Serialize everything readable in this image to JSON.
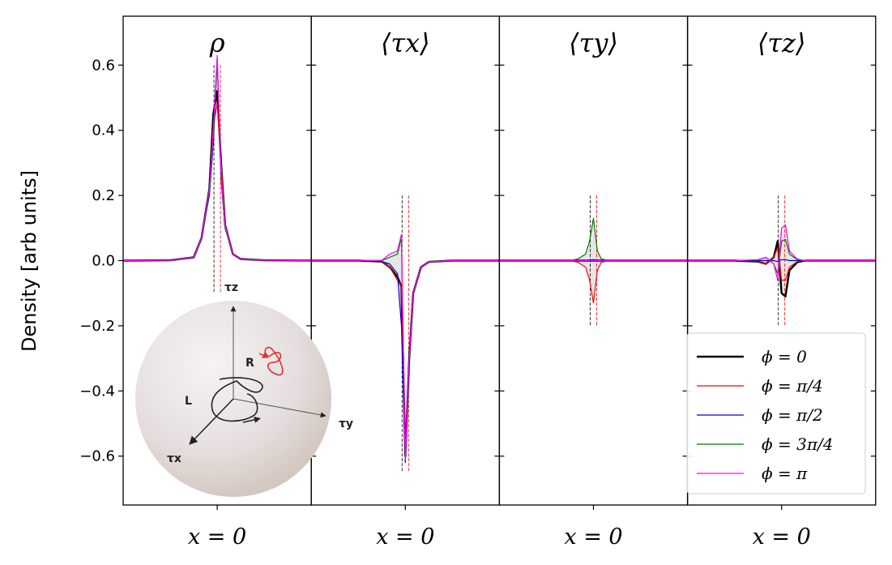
{
  "chart_data": {
    "type": "line",
    "ylabel": "Density [arb units]",
    "ylim": [
      -0.75,
      0.75
    ],
    "yticks": [
      -0.6,
      -0.4,
      -0.2,
      0.0,
      0.2,
      0.4,
      0.6
    ],
    "ytick_labels": [
      "−0.6",
      "−0.4",
      "−0.2",
      "0.0",
      "0.2",
      "0.4",
      "0.6"
    ],
    "xlim": [
      -1.2,
      1.2
    ],
    "x": [
      -1.2,
      -0.6,
      -0.3,
      -0.2,
      -0.1,
      -0.05,
      0.0,
      0.05,
      0.1,
      0.2,
      0.3,
      0.6,
      1.2
    ],
    "panels": [
      {
        "title": "ρ",
        "xtick_label": "x = 0",
        "series": [
          {
            "name": "ϕ = 0",
            "color": "#000000",
            "width": 2.4,
            "values": [
              0,
              0.001,
              0.01,
              0.07,
              0.22,
              0.45,
              0.52,
              0.3,
              0.11,
              0.02,
              0.005,
              0.001,
              0
            ]
          },
          {
            "name": "ϕ = π/4",
            "color": "#ff0000",
            "width": 1.2,
            "values": [
              0,
              0.001,
              0.01,
              0.07,
              0.21,
              0.42,
              0.48,
              0.3,
              0.11,
              0.02,
              0.005,
              0.001,
              0
            ]
          },
          {
            "name": "ϕ = π/2",
            "color": "#0000cc",
            "width": 1.2,
            "values": [
              0,
              0.001,
              0.01,
              0.07,
              0.2,
              0.36,
              0.62,
              0.25,
              0.1,
              0.02,
              0.005,
              0.001,
              0
            ]
          },
          {
            "name": "ϕ = 3π/4",
            "color": "#007700",
            "width": 1.2,
            "values": [
              0,
              0.001,
              0.01,
              0.07,
              0.21,
              0.38,
              0.62,
              0.26,
              0.1,
              0.02,
              0.005,
              0.001,
              0
            ]
          },
          {
            "name": "ϕ = π",
            "color": "#ff00ff",
            "width": 1.2,
            "values": [
              0,
              0.001,
              0.01,
              0.07,
              0.22,
              0.4,
              0.63,
              0.27,
              0.11,
              0.02,
              0.005,
              0.001,
              0
            ]
          }
        ]
      },
      {
        "title": "⟨τx⟩",
        "xtick_label": "x = 0",
        "series": [
          {
            "name": "ϕ = 0",
            "color": "#000000",
            "width": 2.4,
            "values": [
              0,
              0,
              -0.003,
              -0.02,
              -0.05,
              -0.08,
              -0.6,
              -0.3,
              -0.1,
              -0.02,
              -0.004,
              0,
              0
            ]
          },
          {
            "name": "ϕ = π/4",
            "color": "#ff0000",
            "width": 1.2,
            "values": [
              0,
              0,
              -0.003,
              -0.02,
              -0.06,
              -0.08,
              -0.58,
              -0.3,
              -0.1,
              -0.02,
              -0.004,
              0,
              0
            ]
          },
          {
            "name": "ϕ = π/2",
            "color": "#0000cc",
            "width": 1.2,
            "values": [
              0,
              0,
              -0.003,
              -0.01,
              -0.04,
              -0.2,
              -0.62,
              -0.3,
              -0.1,
              -0.02,
              -0.004,
              0,
              0
            ]
          },
          {
            "name": "ϕ = 3π/4",
            "color": "#007700",
            "width": 1.2,
            "values": [
              0,
              0,
              0,
              0.01,
              0.02,
              0.07,
              -0.61,
              -0.3,
              -0.1,
              -0.02,
              -0.004,
              0,
              0
            ]
          },
          {
            "name": "ϕ = π",
            "color": "#ff00ff",
            "width": 1.2,
            "values": [
              0,
              0,
              0.001,
              0.02,
              0.03,
              0.08,
              -0.61,
              -0.3,
              -0.1,
              -0.02,
              -0.004,
              0,
              0
            ]
          }
        ]
      },
      {
        "title": "⟨τy⟩",
        "xtick_label": "x = 0",
        "series": [
          {
            "name": "ϕ = 0",
            "color": "#000000",
            "width": 2.4,
            "values": [
              0,
              0,
              0,
              0,
              0,
              0,
              0,
              0,
              0,
              0,
              0,
              0,
              0
            ]
          },
          {
            "name": "ϕ = π/4",
            "color": "#ff0000",
            "width": 1.2,
            "values": [
              0,
              0,
              0,
              -0.005,
              -0.02,
              -0.06,
              -0.13,
              -0.03,
              -0.005,
              0,
              0,
              0,
              0
            ]
          },
          {
            "name": "ϕ = π/2",
            "color": "#0000cc",
            "width": 1.2,
            "values": [
              0,
              0,
              0,
              0,
              0,
              0.002,
              0.003,
              0.002,
              0,
              0,
              0,
              0,
              0
            ]
          },
          {
            "name": "ϕ = 3π/4",
            "color": "#007700",
            "width": 1.2,
            "values": [
              0,
              0,
              0,
              0.005,
              0.02,
              0.06,
              0.13,
              0.03,
              0.005,
              0,
              0,
              0,
              0
            ]
          },
          {
            "name": "ϕ = π",
            "color": "#ff00ff",
            "width": 1.2,
            "values": [
              0,
              0,
              0,
              0,
              0,
              0,
              0,
              0,
              0,
              0,
              0,
              0,
              0
            ]
          }
        ]
      },
      {
        "title": "⟨τz⟩",
        "xtick_label": "x = 0",
        "series": [
          {
            "name": "ϕ = 0",
            "color": "#000000",
            "width": 2.4,
            "values": [
              0,
              0,
              -0.003,
              -0.01,
              0.01,
              0.06,
              -0.1,
              -0.11,
              -0.03,
              -0.005,
              0,
              0,
              0
            ]
          },
          {
            "name": "ϕ = π/4",
            "color": "#ff0000",
            "width": 1.2,
            "values": [
              0,
              0,
              -0.002,
              -0.01,
              0.01,
              0.04,
              -0.06,
              -0.06,
              -0.02,
              -0.003,
              0,
              0,
              0
            ]
          },
          {
            "name": "ϕ = π/2",
            "color": "#0000cc",
            "width": 1.2,
            "values": [
              0,
              0,
              0,
              0,
              0,
              -0.003,
              0.003,
              0.003,
              0,
              0,
              0,
              0,
              0
            ]
          },
          {
            "name": "ϕ = 3π/4",
            "color": "#007700",
            "width": 1.2,
            "values": [
              0,
              0,
              0.002,
              0.01,
              -0.01,
              -0.04,
              0.06,
              0.065,
              0.02,
              0.003,
              0,
              0,
              0
            ]
          },
          {
            "name": "ϕ = π",
            "color": "#ff00ff",
            "width": 1.2,
            "values": [
              0,
              0,
              0.003,
              0.01,
              -0.01,
              -0.06,
              0.1,
              0.11,
              0.03,
              0.005,
              0,
              0,
              0
            ]
          }
        ]
      }
    ],
    "legend": {
      "placement": "lower-right of last panel",
      "entries": [
        "ϕ = 0",
        "ϕ = π/4",
        "ϕ = π/2",
        "ϕ = 3π/4",
        "ϕ = π"
      ]
    },
    "inset": {
      "type": "bloch sphere",
      "axis_labels": [
        "τz",
        "τy",
        "τx"
      ],
      "point_labels": [
        "R",
        "L"
      ]
    }
  }
}
